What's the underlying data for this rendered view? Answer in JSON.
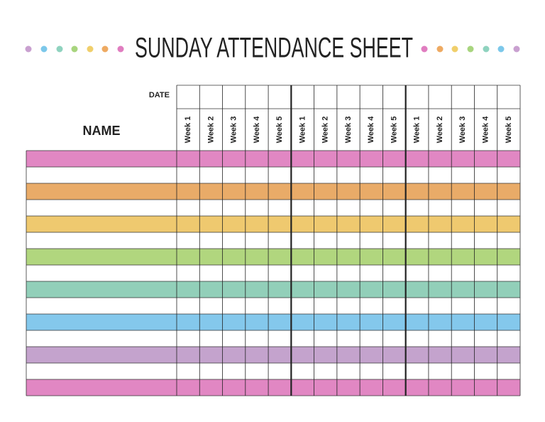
{
  "header": {
    "title": "SUNDAY ATTENDANCE SHEET"
  },
  "table": {
    "date_label": "DATE",
    "name_label": "NAME",
    "weeks": [
      [
        "Week 1",
        "Week 2",
        "Week 3",
        "Week 4",
        "Week 5"
      ],
      [
        "Week 1",
        "Week 2",
        "Week 3",
        "Week 4",
        "Week 5"
      ],
      [
        "Week 1",
        "Week 2",
        "Week 3",
        "Week 4",
        "Week 5"
      ]
    ],
    "row_colors": [
      "#e187c3",
      "#ffffff",
      "#e9ab68",
      "#ffffff",
      "#efc96f",
      "#ffffff",
      "#b1d67e",
      "#ffffff",
      "#92cfb9",
      "#ffffff",
      "#84c8ec",
      "#ffffff",
      "#c4a3cd",
      "#ffffff",
      "#e187c3"
    ]
  }
}
